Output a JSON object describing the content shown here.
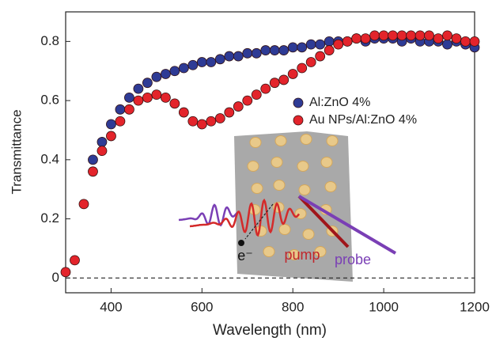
{
  "chart_data": {
    "type": "scatter",
    "x_label": "Wavelength (nm)",
    "y_label": "Transmittance",
    "x": [
      300,
      320,
      340,
      360,
      380,
      400,
      420,
      440,
      460,
      480,
      500,
      520,
      540,
      560,
      580,
      600,
      620,
      640,
      660,
      680,
      700,
      720,
      740,
      760,
      780,
      800,
      820,
      840,
      860,
      880,
      900,
      920,
      940,
      960,
      980,
      1000,
      1020,
      1040,
      1060,
      1080,
      1100,
      1120,
      1140,
      1160,
      1180,
      1200
    ],
    "series": [
      {
        "name": "Al:ZnO 4%",
        "color": "#2e3b95",
        "values": [
          null,
          null,
          null,
          0.4,
          0.46,
          0.52,
          0.57,
          0.61,
          0.64,
          0.66,
          0.68,
          0.69,
          0.7,
          0.71,
          0.72,
          0.73,
          0.73,
          0.74,
          0.75,
          0.75,
          0.76,
          0.76,
          0.77,
          0.77,
          0.77,
          0.78,
          0.78,
          0.79,
          0.79,
          0.8,
          0.8,
          0.8,
          0.81,
          0.8,
          0.81,
          0.81,
          0.81,
          0.8,
          0.81,
          0.8,
          0.8,
          0.8,
          0.79,
          0.8,
          0.79,
          0.78
        ]
      },
      {
        "name": "Au NPs/Al:ZnO 4%",
        "color": "#e3242b",
        "values": [
          0.02,
          0.06,
          0.25,
          0.36,
          0.43,
          0.48,
          0.53,
          0.57,
          0.6,
          0.61,
          0.62,
          0.61,
          0.59,
          0.56,
          0.53,
          0.52,
          0.53,
          0.54,
          0.56,
          0.58,
          0.6,
          0.62,
          0.64,
          0.66,
          0.67,
          0.69,
          0.71,
          0.73,
          0.75,
          0.77,
          0.79,
          0.8,
          0.81,
          0.81,
          0.82,
          0.82,
          0.82,
          0.82,
          0.82,
          0.82,
          0.82,
          0.81,
          0.82,
          0.81,
          0.8,
          0.8
        ]
      }
    ],
    "xlim": [
      300,
      1200
    ],
    "ylim": [
      -0.05,
      0.9
    ],
    "xticks": [
      400,
      600,
      800,
      1000,
      1200
    ],
    "yticks": [
      0,
      0.2,
      0.4,
      0.6,
      0.8
    ],
    "hline": 0,
    "legend": "right",
    "annotations": [
      "pump",
      "probe",
      "e⁻"
    ]
  }
}
